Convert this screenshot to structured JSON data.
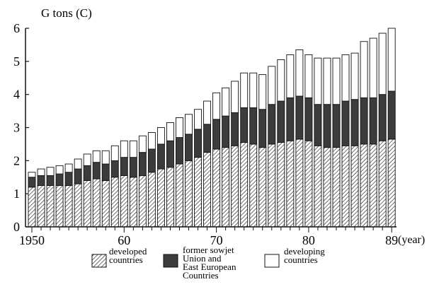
{
  "chart_data": {
    "type": "bar",
    "stacked": true,
    "ylabel": "G tons (C)",
    "xlabel": "(year)",
    "ylim": [
      0,
      6
    ],
    "yticks": [
      "0",
      "1",
      "2",
      "3",
      "4",
      "5",
      "6"
    ],
    "xtick_labels": [
      {
        "year": 1950,
        "label": "1950"
      },
      {
        "year": 1960,
        "label": "60"
      },
      {
        "year": 1970,
        "label": "70"
      },
      {
        "year": 1980,
        "label": "80"
      },
      {
        "year": 1989,
        "label": "89"
      }
    ],
    "x": [
      1950,
      1951,
      1952,
      1953,
      1954,
      1955,
      1956,
      1957,
      1958,
      1959,
      1960,
      1961,
      1962,
      1963,
      1964,
      1965,
      1966,
      1967,
      1968,
      1969,
      1970,
      1971,
      1972,
      1973,
      1974,
      1975,
      1976,
      1977,
      1978,
      1979,
      1980,
      1981,
      1982,
      1983,
      1984,
      1985,
      1986,
      1987,
      1988,
      1989
    ],
    "series": [
      {
        "name": "developed countries",
        "pattern": "hatched",
        "values": [
          1.2,
          1.25,
          1.25,
          1.25,
          1.25,
          1.3,
          1.4,
          1.45,
          1.4,
          1.5,
          1.55,
          1.5,
          1.55,
          1.65,
          1.75,
          1.8,
          1.9,
          2.0,
          2.1,
          2.25,
          2.35,
          2.4,
          2.45,
          2.55,
          2.5,
          2.4,
          2.5,
          2.55,
          2.6,
          2.65,
          2.6,
          2.45,
          2.4,
          2.4,
          2.45,
          2.45,
          2.5,
          2.5,
          2.6,
          2.65
        ]
      },
      {
        "name": "former sowjet Union and East European Countries",
        "pattern": "dark",
        "values": [
          0.3,
          0.3,
          0.3,
          0.35,
          0.4,
          0.45,
          0.45,
          0.5,
          0.5,
          0.5,
          0.55,
          0.6,
          0.7,
          0.7,
          0.75,
          0.8,
          0.8,
          0.8,
          0.85,
          0.85,
          0.9,
          0.95,
          1.0,
          1.05,
          1.1,
          1.15,
          1.2,
          1.25,
          1.3,
          1.3,
          1.3,
          1.25,
          1.3,
          1.3,
          1.35,
          1.4,
          1.4,
          1.4,
          1.4,
          1.45
        ]
      },
      {
        "name": "developing countries",
        "pattern": "white",
        "values": [
          0.15,
          0.2,
          0.25,
          0.25,
          0.25,
          0.3,
          0.35,
          0.35,
          0.4,
          0.45,
          0.5,
          0.5,
          0.5,
          0.5,
          0.5,
          0.55,
          0.6,
          0.6,
          0.6,
          0.7,
          0.8,
          0.85,
          0.95,
          1.05,
          1.05,
          1.05,
          1.15,
          1.25,
          1.3,
          1.4,
          1.3,
          1.4,
          1.4,
          1.4,
          1.4,
          1.4,
          1.7,
          1.8,
          1.85,
          1.9
        ]
      }
    ],
    "legend": [
      {
        "label": "developed\ncountries",
        "pattern": "hatched"
      },
      {
        "label": "former sowjet\nUnion and\nEast European\nCountries",
        "pattern": "dark"
      },
      {
        "label": "developing\ncountries",
        "pattern": "white"
      }
    ],
    "legend_position": "bottom",
    "grid": false
  }
}
